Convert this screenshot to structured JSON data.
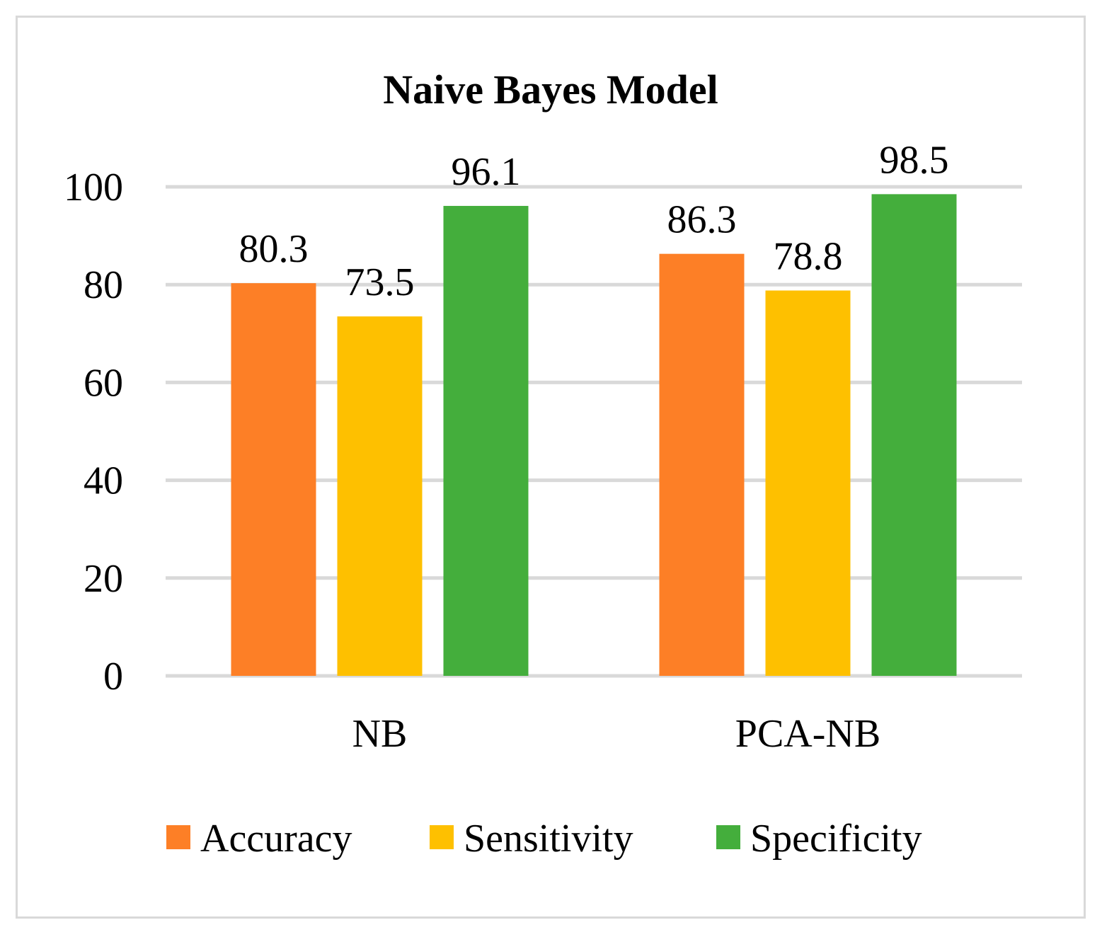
{
  "chart_data": {
    "type": "bar",
    "title": "Naive Bayes Model",
    "categories": [
      "NB",
      "PCA-NB"
    ],
    "series": [
      {
        "name": "Accuracy",
        "color": "#fd7f26",
        "values": [
          80.3,
          86.3
        ]
      },
      {
        "name": "Sensitivity",
        "color": "#fec000",
        "values": [
          73.5,
          78.8
        ]
      },
      {
        "name": "Specificity",
        "color": "#44ae3c",
        "values": [
          96.1,
          98.5
        ]
      }
    ],
    "data_labels": [
      [
        "80.3",
        "86.3"
      ],
      [
        "73.5",
        "78.8"
      ],
      [
        "96.1",
        "98.5"
      ]
    ],
    "yticks": [
      "0",
      "20",
      "40",
      "60",
      "80",
      "100"
    ],
    "ylim": [
      0,
      100
    ],
    "xlabel": "",
    "ylabel": "",
    "grid": true,
    "gridColor": "#d9d9d9",
    "legend_position": "bottom"
  }
}
